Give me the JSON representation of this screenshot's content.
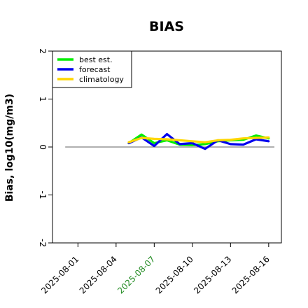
{
  "chart_data": {
    "type": "line",
    "title": "BIAS",
    "xlabel": "",
    "ylabel": "Bias, log10(mg/m3)",
    "ylim": [
      -2.0,
      2.0
    ],
    "xlim": [
      "2025-07-30",
      "2025-08-17"
    ],
    "yticks": [
      "-2",
      "-1",
      "0",
      "1",
      "2"
    ],
    "xticks": [
      {
        "label": "2025-08-01",
        "date": "2025-08-01",
        "color": "#000000"
      },
      {
        "label": "2025-08-04",
        "date": "2025-08-04",
        "color": "#000000"
      },
      {
        "label": "2025-08-07",
        "date": "2025-08-07",
        "color": "#228B22"
      },
      {
        "label": "2025-08-10",
        "date": "2025-08-10",
        "color": "#000000"
      },
      {
        "label": "2025-08-13",
        "date": "2025-08-13",
        "color": "#000000"
      },
      {
        "label": "2025-08-16",
        "date": "2025-08-16",
        "color": "#000000"
      }
    ],
    "reference_line": {
      "y": 0,
      "color": "#808080"
    },
    "grid": false,
    "legend_position": "top-left",
    "series": [
      {
        "name": "best est.",
        "color": "#00EE00",
        "x": [
          "2025-08-05",
          "2025-08-06",
          "2025-08-07",
          "2025-08-08",
          "2025-08-09",
          "2025-08-10",
          "2025-08-11",
          "2025-08-12",
          "2025-08-13",
          "2025-08-14",
          "2025-08-15",
          "2025-08-16"
        ],
        "y": [
          0.08,
          0.26,
          0.08,
          0.14,
          0.05,
          0.04,
          0.06,
          0.12,
          0.14,
          0.15,
          0.24,
          0.18
        ]
      },
      {
        "name": "forecast",
        "color": "#0000EE",
        "x": [
          "2025-08-05",
          "2025-08-06",
          "2025-08-07",
          "2025-08-08",
          "2025-08-09",
          "2025-08-10",
          "2025-08-11",
          "2025-08-12",
          "2025-08-13",
          "2025-08-14",
          "2025-08-15",
          "2025-08-16"
        ],
        "y": [
          0.08,
          0.2,
          0.02,
          0.27,
          0.06,
          0.08,
          -0.04,
          0.14,
          0.06,
          0.05,
          0.16,
          0.12
        ]
      },
      {
        "name": "climatology",
        "color": "#FFD700",
        "x": [
          "2025-08-05",
          "2025-08-06",
          "2025-08-07",
          "2025-08-08",
          "2025-08-09",
          "2025-08-10",
          "2025-08-11",
          "2025-08-12",
          "2025-08-13",
          "2025-08-14",
          "2025-08-15",
          "2025-08-16"
        ],
        "y": [
          0.1,
          0.19,
          0.17,
          0.16,
          0.14,
          0.12,
          0.1,
          0.14,
          0.15,
          0.18,
          0.19,
          0.2
        ]
      }
    ]
  }
}
